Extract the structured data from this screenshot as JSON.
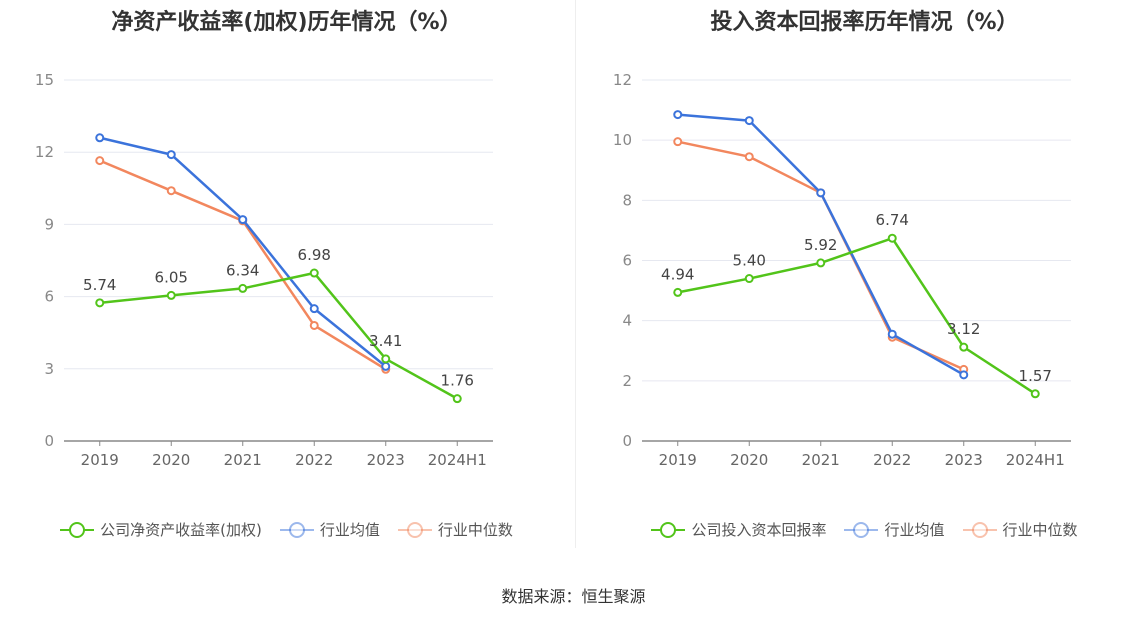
{
  "source": "数据来源：恒生聚源",
  "chart_data": [
    {
      "type": "line",
      "title": "净资产收益率(加权)历年情况（%）",
      "categories": [
        "2019",
        "2020",
        "2021",
        "2022",
        "2023",
        "2024H1"
      ],
      "ylim": [
        0,
        15
      ],
      "yticks": [
        0,
        3,
        6,
        9,
        12,
        15
      ],
      "grid": true,
      "legend": "bottom",
      "series": [
        {
          "name": "公司净资产收益率(加权)",
          "color": "#52c41a",
          "values": [
            5.74,
            6.05,
            6.34,
            6.98,
            3.41,
            1.76
          ],
          "labels": [
            "5.74",
            "6.05",
            "6.34",
            "6.98",
            "3.41",
            "1.76"
          ]
        },
        {
          "name": "行业均值",
          "color": "#3b73db",
          "values": [
            12.6,
            11.9,
            9.2,
            5.5,
            3.1,
            null
          ]
        },
        {
          "name": "行业中位数",
          "color": "#f2875e",
          "values": [
            11.65,
            10.4,
            9.15,
            4.8,
            2.98,
            null
          ]
        }
      ]
    },
    {
      "type": "line",
      "title": "投入资本回报率历年情况（%）",
      "categories": [
        "2019",
        "2020",
        "2021",
        "2022",
        "2023",
        "2024H1"
      ],
      "ylim": [
        0,
        12
      ],
      "yticks": [
        0,
        2,
        4,
        6,
        8,
        10,
        12
      ],
      "grid": true,
      "legend": "bottom",
      "series": [
        {
          "name": "公司投入资本回报率",
          "color": "#52c41a",
          "values": [
            4.94,
            5.4,
            5.92,
            6.74,
            3.12,
            1.57
          ],
          "labels": [
            "4.94",
            "5.40",
            "5.92",
            "6.74",
            "3.12",
            "1.57"
          ]
        },
        {
          "name": "行业均值",
          "color": "#3b73db",
          "values": [
            10.85,
            10.65,
            8.25,
            3.55,
            2.2,
            null
          ]
        },
        {
          "name": "行业中位数",
          "color": "#f2875e",
          "values": [
            9.95,
            9.45,
            8.25,
            3.45,
            2.38,
            null
          ]
        }
      ]
    }
  ]
}
